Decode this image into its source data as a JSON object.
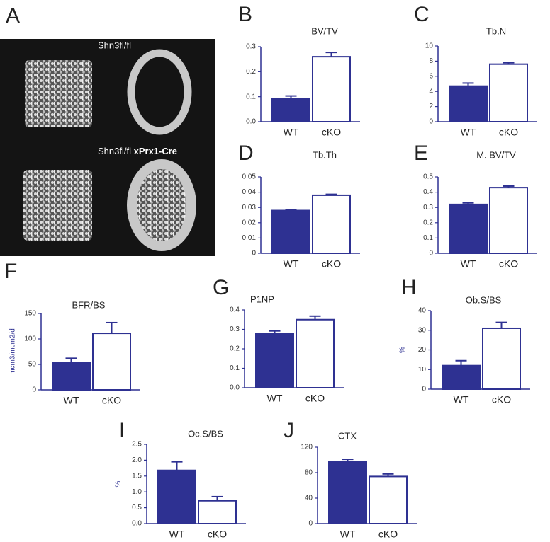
{
  "panel_a": {
    "label": "A",
    "top_caption": "Shn3fl/fl",
    "bottom_caption": [
      "Shn3fl/fl",
      "xPrx1-Cre"
    ]
  },
  "chart_data": [
    {
      "type": "bar",
      "panel": "B",
      "title": "BV/TV",
      "categories": [
        "WT",
        "cKO"
      ],
      "values": [
        0.093,
        0.26
      ],
      "errors": [
        0.01,
        0.017
      ],
      "colors": [
        "#2e3192",
        "#ffffff"
      ],
      "edge_color": "#2e3192",
      "ylim": [
        0,
        0.3
      ],
      "yticks": [
        {
          "value": 0,
          "label": "0.0"
        },
        0.1,
        0.2,
        0.3
      ]
    },
    {
      "type": "bar",
      "panel": "C",
      "title": "Tb.N",
      "categories": [
        "WT",
        "cKO"
      ],
      "values": [
        4.7,
        7.6
      ],
      "errors": [
        0.4,
        0.2
      ],
      "colors": [
        "#2e3192",
        "#ffffff"
      ],
      "edge_color": "#2e3192",
      "ylim": [
        0,
        10
      ],
      "yticks": [
        0,
        2,
        4,
        6,
        8,
        10
      ]
    },
    {
      "type": "bar",
      "panel": "D",
      "title": "Tb.Th",
      "categories": [
        "WT",
        "cKO"
      ],
      "values": [
        0.028,
        0.038
      ],
      "errors": [
        0.0007,
        0.0006
      ],
      "colors": [
        "#2e3192",
        "#ffffff"
      ],
      "edge_color": "#2e3192",
      "ylim": [
        0,
        0.05
      ],
      "yticks": [
        0,
        0.01,
        0.02,
        0.03,
        0.04,
        0.05
      ]
    },
    {
      "type": "bar",
      "panel": "E",
      "title": "M. BV/TV",
      "categories": [
        "WT",
        "cKO"
      ],
      "values": [
        0.32,
        0.43
      ],
      "errors": [
        0.01,
        0.01
      ],
      "colors": [
        "#2e3192",
        "#ffffff"
      ],
      "edge_color": "#2e3192",
      "ylim": [
        0,
        0.5
      ],
      "yticks": [
        0,
        0.1,
        0.2,
        0.3,
        0.4,
        0.5
      ]
    },
    {
      "type": "bar",
      "panel": "F",
      "title": "BFR/BS",
      "ylabel": "mcm3/mcm2/d",
      "categories": [
        "WT",
        "cKO"
      ],
      "values": [
        54,
        111
      ],
      "errors": [
        8,
        21
      ],
      "colors": [
        "#2e3192",
        "#ffffff"
      ],
      "edge_color": "#2e3192",
      "ylim": [
        0,
        150
      ],
      "yticks": [
        0,
        50,
        100,
        150
      ]
    },
    {
      "type": "bar",
      "panel": "G",
      "title": "P1NP",
      "categories": [
        "WT",
        "cKO"
      ],
      "values": [
        0.28,
        0.35
      ],
      "errors": [
        0.012,
        0.018
      ],
      "colors": [
        "#2e3192",
        "#ffffff"
      ],
      "edge_color": "#2e3192",
      "ylim": [
        0,
        0.4
      ],
      "yticks": [
        {
          "value": 0,
          "label": "0.0"
        },
        0.1,
        0.2,
        0.3,
        0.4
      ]
    },
    {
      "type": "bar",
      "panel": "H",
      "title": "Ob.S/BS",
      "ylabel": "%",
      "categories": [
        "WT",
        "cKO"
      ],
      "values": [
        12,
        31
      ],
      "errors": [
        2.5,
        3
      ],
      "colors": [
        "#2e3192",
        "#ffffff"
      ],
      "edge_color": "#2e3192",
      "ylim": [
        0,
        40
      ],
      "yticks": [
        0,
        10,
        20,
        30,
        40
      ]
    },
    {
      "type": "bar",
      "panel": "I",
      "title": "Oc.S/BS",
      "ylabel": "%",
      "categories": [
        "WT",
        "cKO"
      ],
      "values": [
        1.68,
        0.72
      ],
      "errors": [
        0.27,
        0.13
      ],
      "colors": [
        "#2e3192",
        "#ffffff"
      ],
      "edge_color": "#2e3192",
      "ylim": [
        0,
        2.5
      ],
      "yticks": [
        {
          "value": 0,
          "label": "0.0"
        },
        0.5,
        {
          "value": 1,
          "label": "1.0"
        },
        1.5,
        {
          "value": 2,
          "label": "2.0"
        },
        2.5
      ]
    },
    {
      "type": "bar",
      "panel": "J",
      "title": "CTX",
      "categories": [
        "WT",
        "cKO"
      ],
      "values": [
        97,
        74
      ],
      "errors": [
        4,
        4
      ],
      "colors": [
        "#2e3192",
        "#ffffff"
      ],
      "edge_color": "#2e3192",
      "ylim": [
        0,
        120
      ],
      "yticks": [
        0,
        40,
        80,
        120
      ]
    }
  ]
}
